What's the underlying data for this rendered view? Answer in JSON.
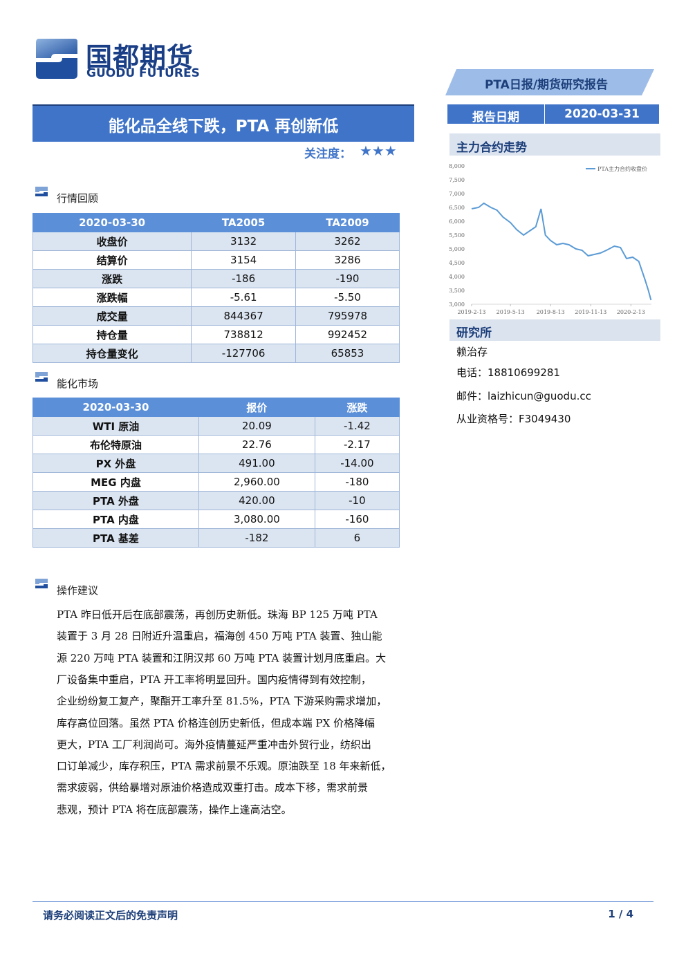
{
  "logo": {
    "cn": "国都期货",
    "en": "GUODU FUTURES"
  },
  "report_type": "PTA日报/期货研究报告",
  "title": "能化品全线下跌，PTA 再创新低",
  "attention": {
    "label": "关注度：",
    "stars": "★★★"
  },
  "report_date": {
    "label": "报告日期",
    "value": "2020-03-31"
  },
  "chart_data": {
    "type": "line",
    "title": "主力合约走势",
    "x": [
      "2019-2-13",
      "2019-3-1",
      "2019-3-13",
      "2019-3-29",
      "2019-4-12",
      "2019-4-26",
      "2019-5-13",
      "2019-5-27",
      "2019-6-12",
      "2019-6-26",
      "2019-7-10",
      "2019-7-22",
      "2019-8-1",
      "2019-8-13",
      "2019-8-27",
      "2019-9-10",
      "2019-9-24",
      "2019-10-10",
      "2019-10-24",
      "2019-11-7",
      "2019-11-21",
      "2019-12-5",
      "2019-12-19",
      "2020-1-6",
      "2020-1-20",
      "2020-2-3",
      "2020-2-17",
      "2020-3-2",
      "2020-3-16",
      "2020-3-24",
      "2020-3-30"
    ],
    "series": [
      {
        "name": "PTA主力合约收盘价",
        "color": "#5b9bd5",
        "values": [
          6450,
          6500,
          6650,
          6500,
          6400,
          6150,
          5950,
          5700,
          5500,
          5650,
          5800,
          6450,
          5500,
          5300,
          5150,
          5200,
          5150,
          5000,
          4950,
          4750,
          4800,
          4850,
          4950,
          5100,
          5050,
          4650,
          4700,
          4550,
          3900,
          3500,
          3150
        ]
      }
    ],
    "xlim": [
      "2019-2-13",
      "2020-3-31"
    ],
    "xticks": [
      "2019-2-13",
      "2019-5-13",
      "2019-8-13",
      "2019-11-13",
      "2020-2-13"
    ],
    "ylim": [
      3000,
      8000
    ],
    "yticks": [
      {
        "value": 3000,
        "label": "3,000"
      },
      {
        "value": 3500,
        "label": "3,500"
      },
      {
        "value": 4000,
        "label": "4,000"
      },
      {
        "value": 4500,
        "label": "4,500"
      },
      {
        "value": 5000,
        "label": "5,000"
      },
      {
        "value": 5500,
        "label": "5,500"
      },
      {
        "value": 6000,
        "label": "6,000"
      },
      {
        "value": 6500,
        "label": "6,500"
      },
      {
        "value": 7000,
        "label": "7,000"
      },
      {
        "value": 7500,
        "label": "7,500"
      },
      {
        "value": 8000,
        "label": "8,000"
      }
    ],
    "grid": false,
    "legend": "top-right"
  },
  "research": {
    "heading": "研究所",
    "analyst": "赖治存",
    "phone": "电话：18810699281",
    "email": "邮件：laizhicun@guodu.cc",
    "license": "从业资格号：F3049430"
  },
  "market_review": {
    "heading": "行情回顾",
    "header": [
      "2020-03-30",
      "TA2005",
      "TA2009"
    ],
    "rows": [
      [
        "收盘价",
        "3132",
        "3262"
      ],
      [
        "结算价",
        "3154",
        "3286"
      ],
      [
        "涨跌",
        "-186",
        "-190"
      ],
      [
        "涨跌幅",
        "-5.61",
        "-5.50"
      ],
      [
        "成交量",
        "844367",
        "795978"
      ],
      [
        "持仓量",
        "738812",
        "992452"
      ],
      [
        "持仓量变化",
        "-127706",
        "65853"
      ]
    ]
  },
  "energy_market": {
    "heading": "能化市场",
    "header": [
      "2020-03-30",
      "报价",
      "涨跌"
    ],
    "rows": [
      [
        "WTI 原油",
        "20.09",
        "-1.42"
      ],
      [
        "布伦特原油",
        "22.76",
        "-2.17"
      ],
      [
        "PX 外盘",
        "491.00",
        "-14.00"
      ],
      [
        "MEG 内盘",
        "2,960.00",
        "-180"
      ],
      [
        "PTA 外盘",
        "420.00",
        "-10"
      ],
      [
        "PTA 内盘",
        "3,080.00",
        "-160"
      ],
      [
        "PTA 基差",
        "-182",
        "6"
      ]
    ]
  },
  "advice": {
    "heading": "操作建议",
    "lines": [
      "PTA 昨日低开后在底部震荡，再创历史新低。珠海 BP 125 万吨 PTA",
      "装置于 3 月 28 日附近升温重启，福海创 450 万吨 PTA 装置、独山能",
      "源 220 万吨 PTA 装置和江阴汉邦 60 万吨 PTA 装置计划月底重启。大",
      "厂设备集中重启，PTA 开工率将明显回升。国内疫情得到有效控制，",
      "企业纷纷复工复产，聚酯开工率升至 81.5%，PTA 下游采购需求增加，",
      "库存高位回落。虽然 PTA 价格连创历史新低，但成本端 PX 价格降幅",
      "更大，PTA 工厂利润尚可。海外疫情蔓延严重冲击外贸行业，纺织出",
      "口订单减少，库存积压，PTA 需求前景不乐观。原油跌至 18 年来新低，",
      "需求疲弱，供给暴增对原油价格造成双重打击。成本下移，需求前景",
      "悲观，预计 PTA 将在底部震荡，操作上逢高沽空。"
    ]
  },
  "footer": {
    "disclaimer": "请务必阅读正文后的免责声明",
    "page": "1 / 4"
  }
}
